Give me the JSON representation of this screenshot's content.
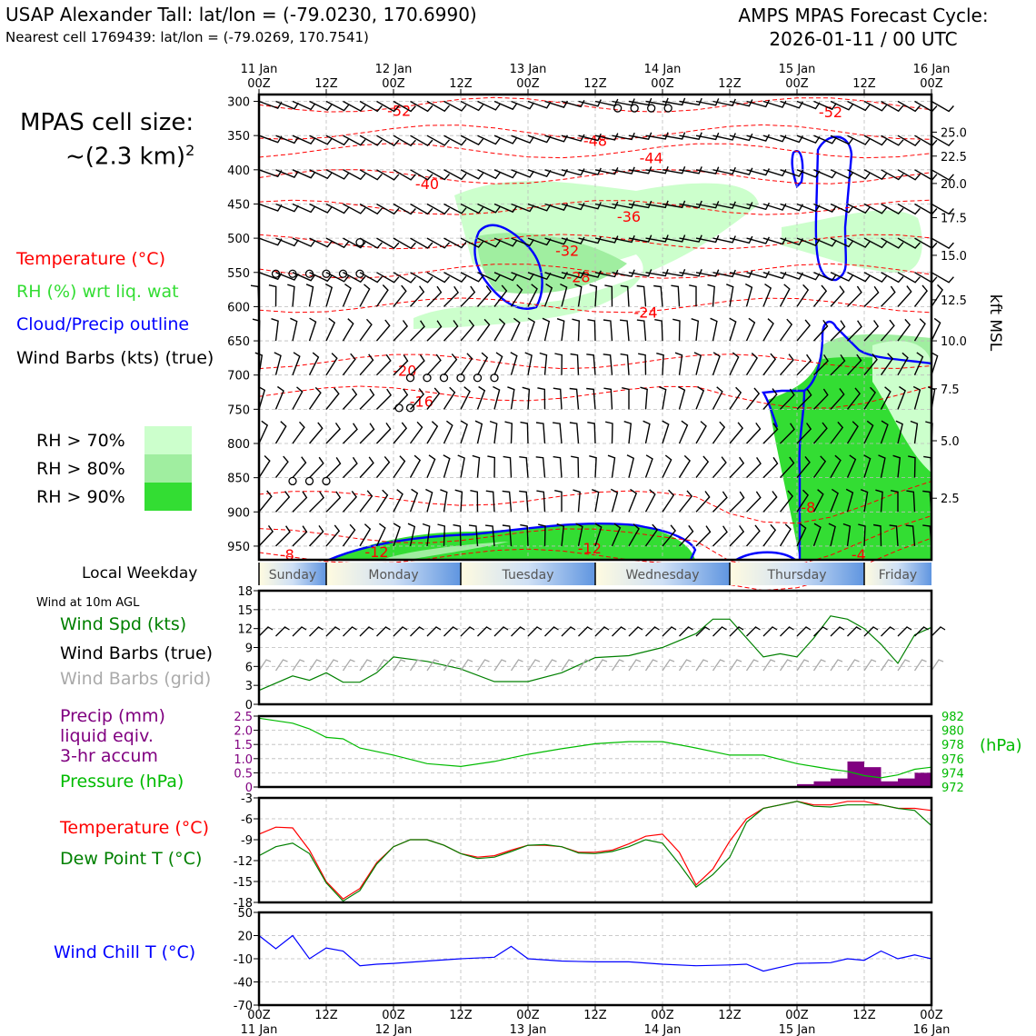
{
  "header": {
    "title_left": "USAP Alexander Tall: lat/lon = (-79.0230, 170.6990)",
    "subtitle_left": "Nearest cell 1769439: lat/lon = (-79.0269, 170.7541)",
    "title_right_line1": "AMPS MPAS Forecast Cycle:",
    "title_right_line2": "2026-01-11 / 00 UTC"
  },
  "side": {
    "cell_size_line1": "MPAS cell size:",
    "cell_size_line2": "~(2.3 km)",
    "cell_size_sup": "2",
    "legend_temp": "Temperature (°C)",
    "legend_rh": "RH (%) wrt liq. wat",
    "legend_cloud": "Cloud/Precip outline",
    "legend_wind": "Wind Barbs (kts) (true)",
    "rh70": "RH > 70%",
    "rh80": "RH > 80%",
    "rh90": "RH > 90%",
    "local_weekday": "Local Weekday",
    "wind10m": "Wind at 10m AGL",
    "wind_spd": "Wind Spd (kts)",
    "wind_barbs_true": "Wind Barbs (true)",
    "wind_barbs_grid": "Wind Barbs (grid)",
    "precip1": "Precip (mm)",
    "precip2": "liquid eqiv.",
    "precip3": "3-hr accum",
    "pressure": "Pressure (hPa)",
    "temperature": "Temperature (°C)",
    "dewpoint": "Dew Point T (°C)",
    "windchill": "Wind Chill T (°C)",
    "hpa_unit": "(hPa)",
    "kft_unit": "kft MSL"
  },
  "colors": {
    "temp": "#ff0000",
    "rh_label": "#33dd33",
    "cloud": "#0000ff",
    "wind_spd": "#008000",
    "grid_barb": "#aaaaaa",
    "precip": "#800080",
    "pressure": "#00bb00",
    "dew": "#008000",
    "rh70": "#ccffcc",
    "rh80": "#a0eea0",
    "rh90": "#33dd33"
  },
  "chart_data": [
    {
      "type": "time-height cross section",
      "x_top_labels": [
        [
          "11 Jan",
          "00Z"
        ],
        [
          "",
          "12Z"
        ],
        [
          "12 Jan",
          "00Z"
        ],
        [
          "",
          "12Z"
        ],
        [
          "13 Jan",
          "00Z"
        ],
        [
          "",
          "12Z"
        ],
        [
          "14 Jan",
          "00Z"
        ],
        [
          "",
          "12Z"
        ],
        [
          "15 Jan",
          "00Z"
        ],
        [
          "",
          "12Z"
        ],
        [
          "16 Jan",
          "00Z"
        ]
      ],
      "y_pressure_ticks": [
        300,
        350,
        400,
        450,
        500,
        550,
        600,
        650,
        700,
        750,
        800,
        850,
        900,
        950
      ],
      "ylim_hpa": [
        970,
        290
      ],
      "right_kft_ticks": [
        {
          "label": "25.0",
          "p": 345
        },
        {
          "label": "22.5",
          "p": 380
        },
        {
          "label": "20.0",
          "p": 420
        },
        {
          "label": "17.5",
          "p": 470
        },
        {
          "label": "15.0",
          "p": 525
        },
        {
          "label": "12.5",
          "p": 590
        },
        {
          "label": "10.0",
          "p": 650
        },
        {
          "label": "7.5",
          "p": 720
        },
        {
          "label": "5.0",
          "p": 796
        },
        {
          "label": "2.5",
          "p": 880
        }
      ],
      "temperature_contour_labels": [
        {
          "v": "-52",
          "h": 25,
          "p": 313
        },
        {
          "v": "-52",
          "h": 102,
          "p": 315
        },
        {
          "v": "-48",
          "h": 60,
          "p": 357
        },
        {
          "v": "-44",
          "h": 70,
          "p": 382
        },
        {
          "v": "-40",
          "h": 30,
          "p": 420
        },
        {
          "v": "-36",
          "h": 66,
          "p": 468
        },
        {
          "v": "-32",
          "h": 55,
          "p": 518
        },
        {
          "v": "-28",
          "h": 57,
          "p": 556
        },
        {
          "v": "-24",
          "h": 69,
          "p": 608
        },
        {
          "v": "-20",
          "h": 26,
          "p": 693
        },
        {
          "v": "-16",
          "h": 29,
          "p": 738
        },
        {
          "v": "-12",
          "h": 21,
          "p": 958
        },
        {
          "v": "-12",
          "h": 59,
          "p": 953
        },
        {
          "v": "-8",
          "h": 5,
          "p": 962
        },
        {
          "v": "-8",
          "h": 98,
          "p": 893
        },
        {
          "v": "-4",
          "h": 107,
          "p": 962
        }
      ],
      "temperature_contour_levels": [
        -52,
        -48,
        -44,
        -40,
        -36,
        -32,
        -28,
        -24,
        -20,
        -16,
        -12,
        -8,
        -4
      ]
    },
    {
      "type": "line+barbs",
      "title": "Wind Spd (kts)",
      "yticks": [
        0,
        3,
        6,
        9,
        12,
        15,
        18
      ],
      "ylim": [
        0,
        18
      ],
      "x_hours": [
        0,
        6,
        9,
        12,
        15,
        18,
        21,
        24,
        30,
        36,
        42,
        48,
        54,
        60,
        66,
        72,
        78,
        81,
        84,
        90,
        93,
        96,
        99,
        102,
        105,
        108,
        111,
        114,
        117,
        120
      ],
      "values": [
        2.2,
        4.5,
        3.8,
        5,
        3.5,
        3.5,
        5,
        7.5,
        6.8,
        5.6,
        3.6,
        3.6,
        5,
        7.4,
        7.7,
        9,
        11.2,
        13.5,
        13.5,
        7.5,
        8,
        7.5,
        10.5,
        14,
        13.5,
        12,
        9.5,
        6.5,
        11,
        12.2
      ]
    },
    {
      "type": "bar+line",
      "title": "Precip (mm) / Pressure (hPa)",
      "precip_yticks": [
        0,
        0.5,
        1.0,
        1.5,
        2.0,
        2.5
      ],
      "precip_ylim": [
        0,
        2.5
      ],
      "pressure_yticks": [
        972,
        974,
        976,
        978,
        980,
        982
      ],
      "pressure_ylim": [
        972,
        982
      ],
      "precip_bars": [
        {
          "h": 99,
          "v": 0.1
        },
        {
          "h": 102,
          "v": 0.2
        },
        {
          "h": 105,
          "v": 0.3
        },
        {
          "h": 108,
          "v": 0.9
        },
        {
          "h": 111,
          "v": 0.7
        },
        {
          "h": 114,
          "v": 0.2
        },
        {
          "h": 117,
          "v": 0.3
        },
        {
          "h": 120,
          "v": 0.5
        }
      ],
      "pressure_x_hours": [
        0,
        6,
        9,
        12,
        15,
        18,
        24,
        30,
        36,
        42,
        48,
        54,
        60,
        66,
        72,
        78,
        84,
        90,
        96,
        99,
        102,
        105,
        108,
        111,
        114,
        117,
        120
      ],
      "pressure_values": [
        981.7,
        981,
        980.2,
        979,
        978.8,
        977.5,
        976.5,
        975.3,
        974.9,
        975.6,
        976.6,
        977.4,
        978.1,
        978.4,
        978.4,
        977.5,
        976.5,
        976.5,
        975.3,
        974.9,
        974.5,
        974.2,
        973.6,
        973.3,
        973.7,
        974.5,
        974.8
      ]
    },
    {
      "type": "line",
      "title": "Temperature (°C) / Dew Point T (°C)",
      "yticks": [
        -18,
        -15,
        -12,
        -9,
        -6,
        -3
      ],
      "ylim": [
        -18,
        -3
      ],
      "x_hours": [
        0,
        3,
        6,
        9,
        12,
        15,
        18,
        21,
        24,
        27,
        30,
        33,
        36,
        39,
        42,
        45,
        48,
        51,
        54,
        57,
        60,
        63,
        66,
        69,
        72,
        75,
        78,
        81,
        84,
        87,
        90,
        93,
        96,
        99,
        102,
        105,
        108,
        111,
        114,
        117,
        120
      ],
      "temperature": [
        -8.2,
        -7.2,
        -7.3,
        -10.5,
        -15,
        -17.5,
        -16,
        -12.3,
        -10,
        -9,
        -9,
        -9.8,
        -11,
        -11.5,
        -11.3,
        -10.5,
        -9.8,
        -9.8,
        -10,
        -10.8,
        -10.8,
        -10.5,
        -9.6,
        -8.5,
        -8.2,
        -10.8,
        -15.5,
        -13.2,
        -9.2,
        -6,
        -4.5,
        -4,
        -3.5,
        -4,
        -4,
        -3.5,
        -3.5,
        -4,
        -4.5,
        -4.5,
        -4.8
      ],
      "dewpoint": [
        -11.3,
        -10,
        -9.5,
        -11,
        -15.2,
        -17.8,
        -16.3,
        -12.5,
        -10,
        -9,
        -9,
        -9.8,
        -11,
        -11.7,
        -11.5,
        -10.7,
        -9.8,
        -9.7,
        -10,
        -10.9,
        -11,
        -10.7,
        -10,
        -9,
        -9.5,
        -12.5,
        -15.8,
        -14,
        -11.5,
        -6.5,
        -4.5,
        -4,
        -3.5,
        -4.2,
        -4.3,
        -4,
        -4,
        -4,
        -4.5,
        -4.8,
        -7
      ]
    },
    {
      "type": "line",
      "title": "Wind Chill T (°C)",
      "yticks": [
        -70,
        -40,
        -10,
        20,
        50
      ],
      "ylim": [
        -70,
        50
      ],
      "x_hours": [
        0,
        3,
        6,
        9,
        12,
        15,
        18,
        21,
        24,
        30,
        36,
        42,
        45,
        48,
        54,
        60,
        66,
        72,
        78,
        84,
        87,
        90,
        96,
        102,
        105,
        108,
        111,
        114,
        117,
        120
      ],
      "values": [
        20,
        3,
        20,
        -10,
        4,
        0,
        -19,
        -17,
        -16,
        -13,
        -10,
        -8,
        6,
        -10,
        -13,
        -14,
        -14,
        -17,
        -19,
        -18,
        -17,
        -26,
        -16,
        -15,
        -10,
        -12,
        0,
        -10,
        -5,
        -10
      ]
    }
  ],
  "bottom_axis": [
    [
      "00Z",
      "11 Jan"
    ],
    [
      "12Z",
      ""
    ],
    [
      "00Z",
      "12 Jan"
    ],
    [
      "12Z",
      ""
    ],
    [
      "00Z",
      "13 Jan"
    ],
    [
      "12Z",
      ""
    ],
    [
      "00Z",
      "14 Jan"
    ],
    [
      "12Z",
      ""
    ],
    [
      "00Z",
      "15 Jan"
    ],
    [
      "12Z",
      ""
    ],
    [
      "00Z",
      "16 Jan"
    ]
  ],
  "weekdays": [
    "Sunday",
    "Monday",
    "Tuesday",
    "Wednesday",
    "Thursday",
    "Friday"
  ]
}
